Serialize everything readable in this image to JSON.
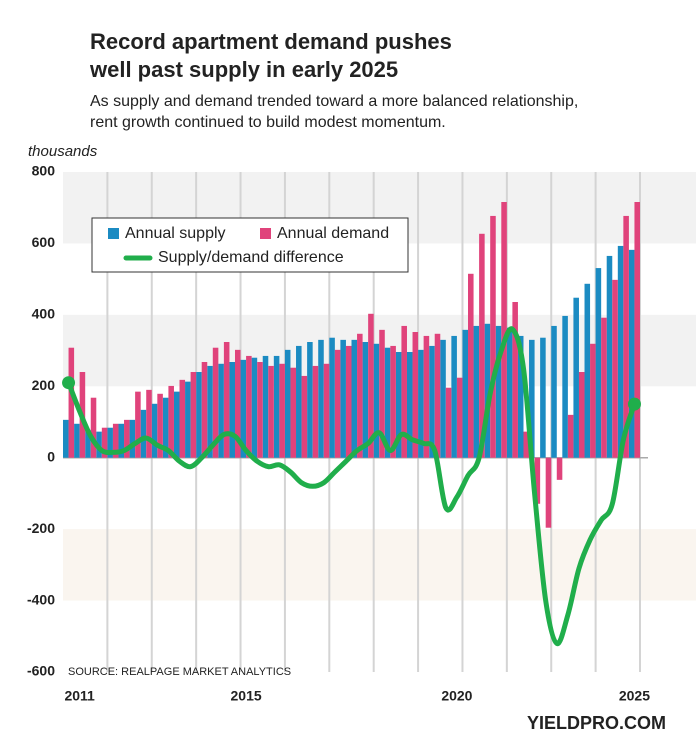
{
  "chart_data": {
    "type": "bar",
    "title": [
      "Record apartment demand pushes",
      "well past supply in early 2025"
    ],
    "subtitle": [
      "As supply and demand trended toward a more balanced relationship,",
      "rent growth continued to build modest momentum."
    ],
    "y_label": "thousands",
    "source": "SOURCE: REALPAGE MARKET ANALYTICS",
    "brand": "YIELDPRO.COM",
    "categories": [
      null,
      "2011",
      null,
      null,
      null,
      null,
      null,
      null,
      null,
      null,
      null,
      null,
      null,
      null,
      null,
      null,
      "2015",
      null,
      null,
      null,
      null,
      null,
      null,
      null,
      null,
      null,
      null,
      null,
      null,
      null,
      null,
      null,
      null,
      null,
      null,
      "2020",
      null,
      null,
      null,
      null,
      null,
      null,
      null,
      null,
      null,
      null,
      null,
      null,
      null,
      null,
      null,
      "2025"
    ],
    "series": [
      {
        "name": "Annual supply",
        "color": "#1b8bc2",
        "values": [
          106,
          95,
          78,
          73,
          84,
          95,
          106,
          134,
          151,
          168,
          185,
          213,
          240,
          257,
          263,
          268,
          274,
          280,
          285,
          285,
          302,
          313,
          324,
          330,
          336,
          330,
          330,
          324,
          319,
          308,
          296,
          296,
          302,
          313,
          330,
          341,
          358,
          369,
          375,
          369,
          364,
          341,
          330,
          336,
          369,
          397,
          448,
          487,
          531,
          565,
          593,
          582
        ]
      },
      {
        "name": "Annual demand",
        "color": "#e0437b",
        "values": [
          308,
          240,
          168,
          84,
          95,
          106,
          185,
          190,
          179,
          201,
          218,
          240,
          268,
          308,
          324,
          302,
          285,
          268,
          257,
          263,
          252,
          229,
          257,
          263,
          302,
          313,
          347,
          403,
          358,
          313,
          369,
          352,
          341,
          347,
          196,
          224,
          515,
          627,
          677,
          716,
          436,
          73,
          -129,
          -196,
          -62,
          120,
          240,
          319,
          392,
          498,
          677,
          716
        ]
      },
      {
        "name": "Supply/demand difference",
        "color": "#20ae4b",
        "type": "line",
        "values": [
          210,
          130,
          60,
          20,
          15,
          20,
          40,
          55,
          35,
          20,
          -10,
          -25,
          0,
          35,
          65,
          60,
          20,
          -10,
          -25,
          -20,
          -40,
          -70,
          -80,
          -70,
          -40,
          -10,
          20,
          40,
          70,
          20,
          65,
          50,
          40,
          20,
          -140,
          -110,
          -50,
          0,
          180,
          300,
          360,
          250,
          -100,
          -400,
          -520,
          -440,
          -310,
          -230,
          -175,
          -130,
          50,
          150
        ]
      }
    ],
    "ylim": [
      -600,
      800
    ],
    "yticks": [
      800,
      600,
      400,
      200,
      0,
      -200,
      -400,
      -600
    ],
    "legend": "top-left"
  }
}
